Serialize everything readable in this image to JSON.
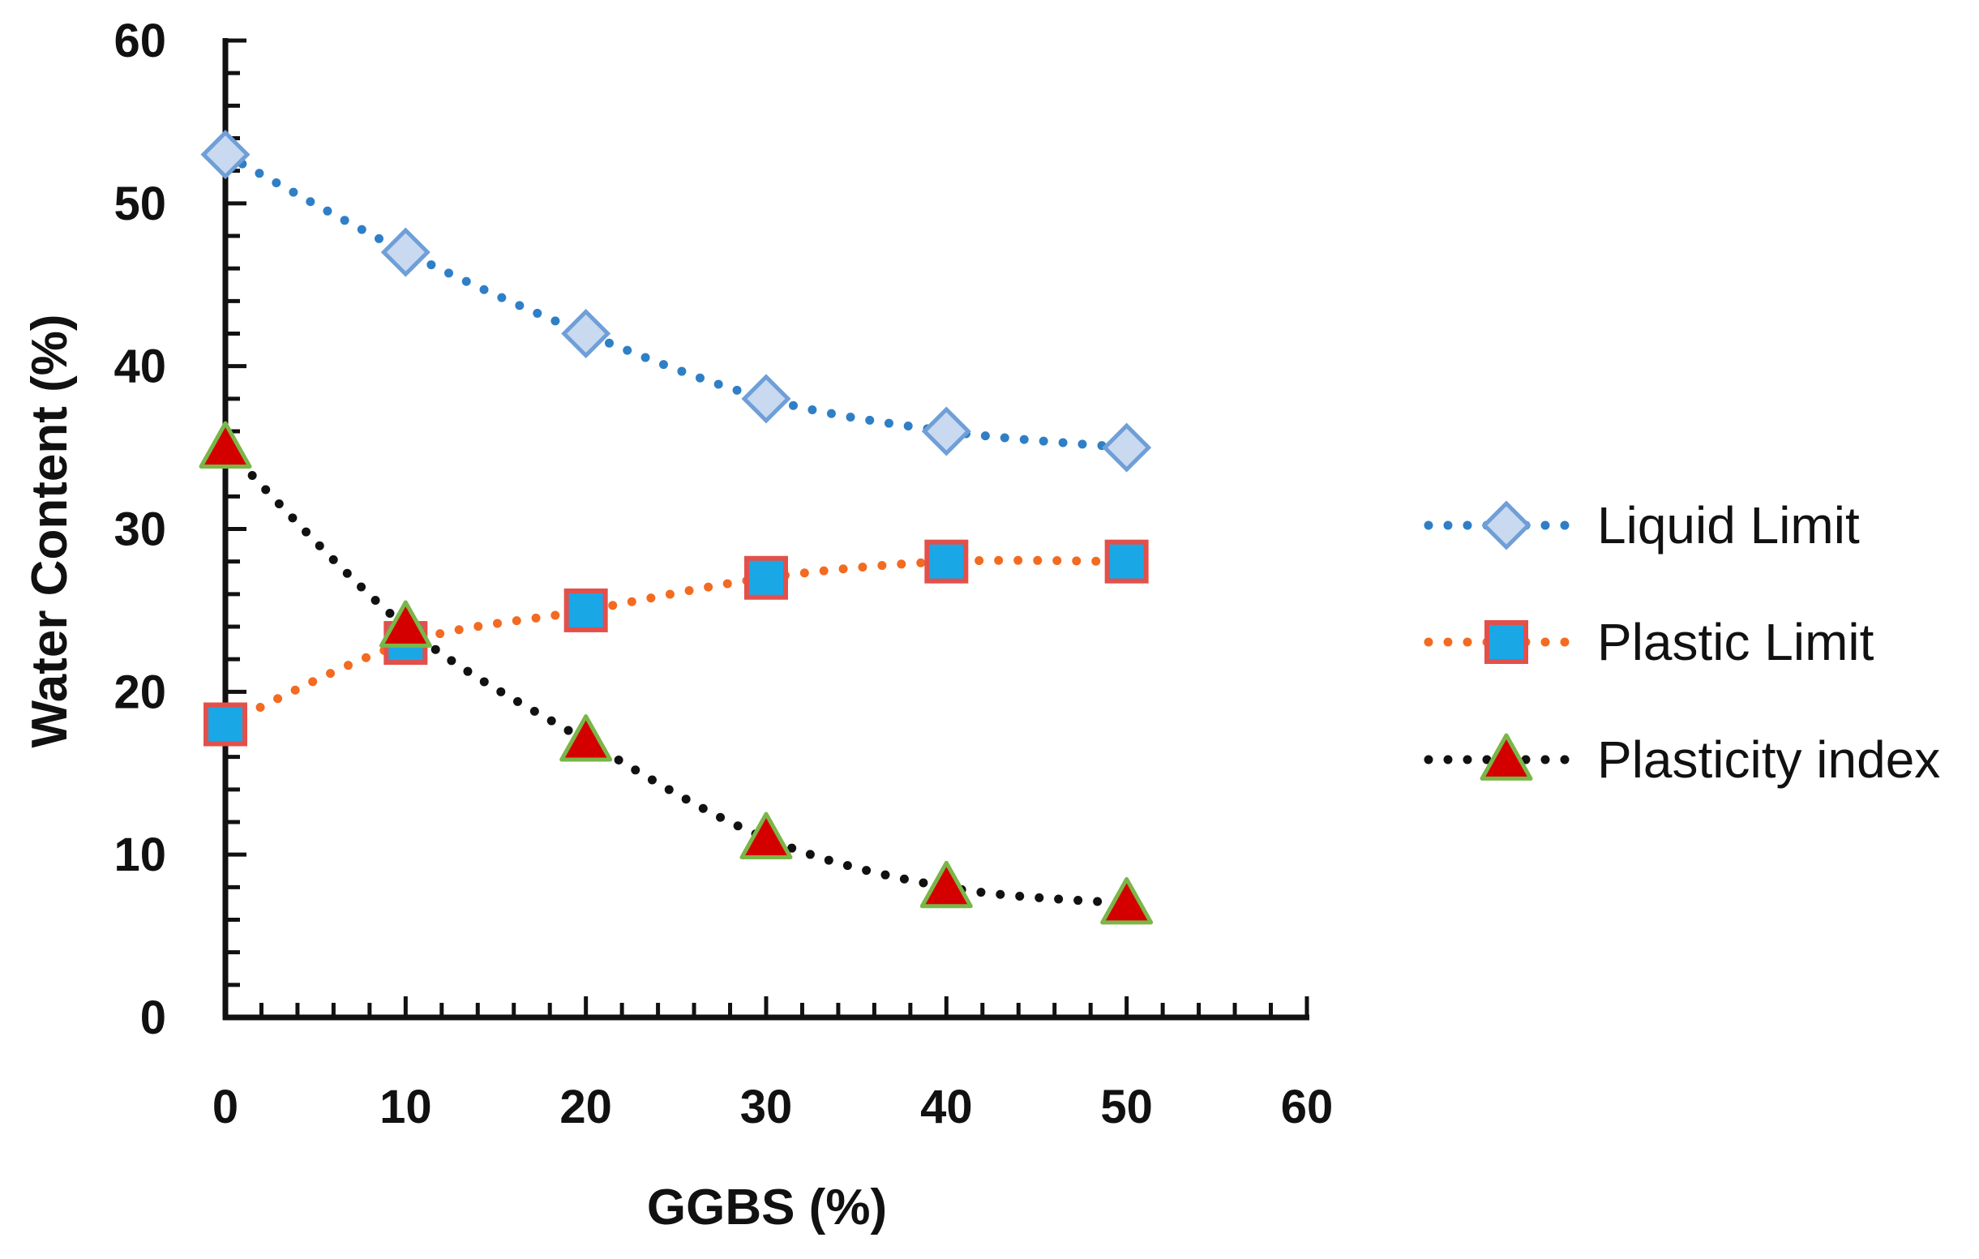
{
  "chart_data": {
    "type": "scatter",
    "title": "",
    "xlabel": "GGBS (%)",
    "ylabel": "Water Content (%)",
    "xlim": [
      0,
      60
    ],
    "ylim": [
      0,
      60
    ],
    "xticks": [
      0,
      10,
      20,
      30,
      40,
      50,
      60
    ],
    "yticks": [
      0,
      10,
      20,
      30,
      40,
      50,
      60
    ],
    "x_minor_step": 2,
    "y_minor_step": 2,
    "grid": false,
    "legend_position": "right",
    "x": [
      0,
      10,
      20,
      30,
      40,
      50
    ],
    "series": [
      {
        "name": "Liquid Limit",
        "values": [
          53,
          47,
          42,
          38,
          36,
          35
        ],
        "marker": "diamond",
        "line_color": "#2f7fc6",
        "marker_fill": "#c9d9f0",
        "marker_stroke": "#6f9fd8"
      },
      {
        "name": "Plastic Limit",
        "values": [
          18,
          23,
          25,
          27,
          28,
          28
        ],
        "marker": "square",
        "line_color": "#f26b21",
        "marker_fill": "#1aa7e6",
        "marker_stroke": "#e3504a"
      },
      {
        "name": "Plasticity index",
        "values": [
          35,
          24,
          17,
          11,
          8,
          7
        ],
        "marker": "triangle",
        "line_color": "#111111",
        "marker_fill": "#d40000",
        "marker_stroke": "#7ab648"
      }
    ]
  }
}
